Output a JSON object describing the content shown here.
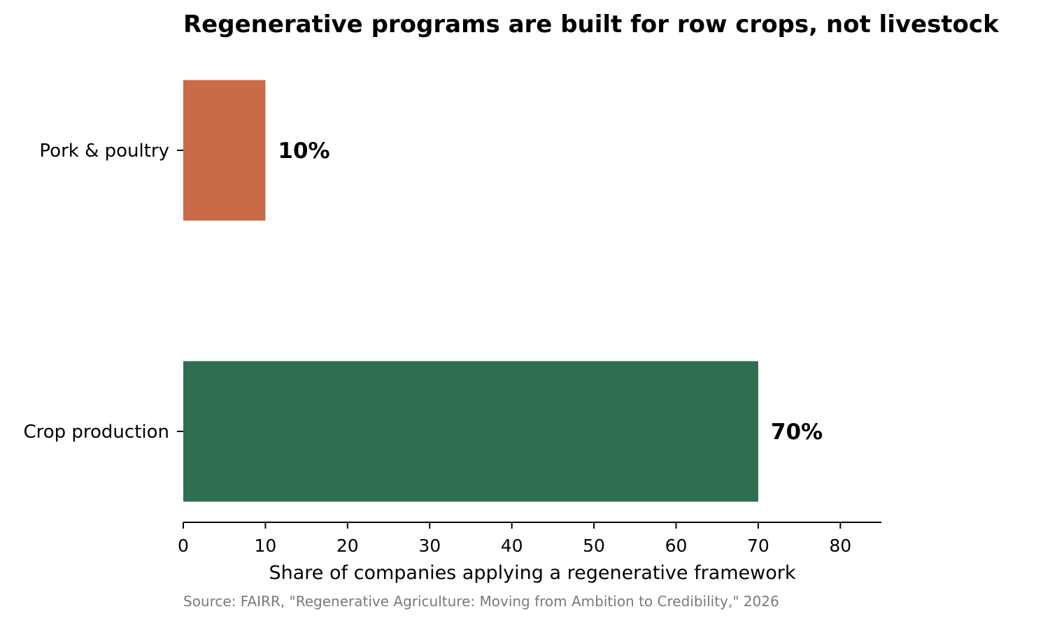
{
  "chart_data": {
    "type": "bar",
    "orientation": "horizontal",
    "title": "Regenerative programs are built for row crops, not livestock",
    "xlabel": "Share of companies applying a regenerative framework",
    "ylabel": "",
    "categories": [
      "Pork & poultry",
      "Crop production"
    ],
    "values": [
      10,
      70
    ],
    "value_labels": [
      "10%",
      "70%"
    ],
    "bar_colors": [
      "#c96a49",
      "#306e52"
    ],
    "xlim": [
      0,
      85
    ],
    "xticks": [
      0,
      10,
      20,
      30,
      40,
      50,
      60,
      70,
      80
    ],
    "grid": false,
    "legend": "none"
  },
  "source": "Source: FAIRR, \"Regenerative Agriculture: Moving from Ambition to Credibility,\" 2026",
  "colors": {
    "text": "#000000",
    "source_text": "#7a7a7a",
    "axis": "#000000"
  }
}
